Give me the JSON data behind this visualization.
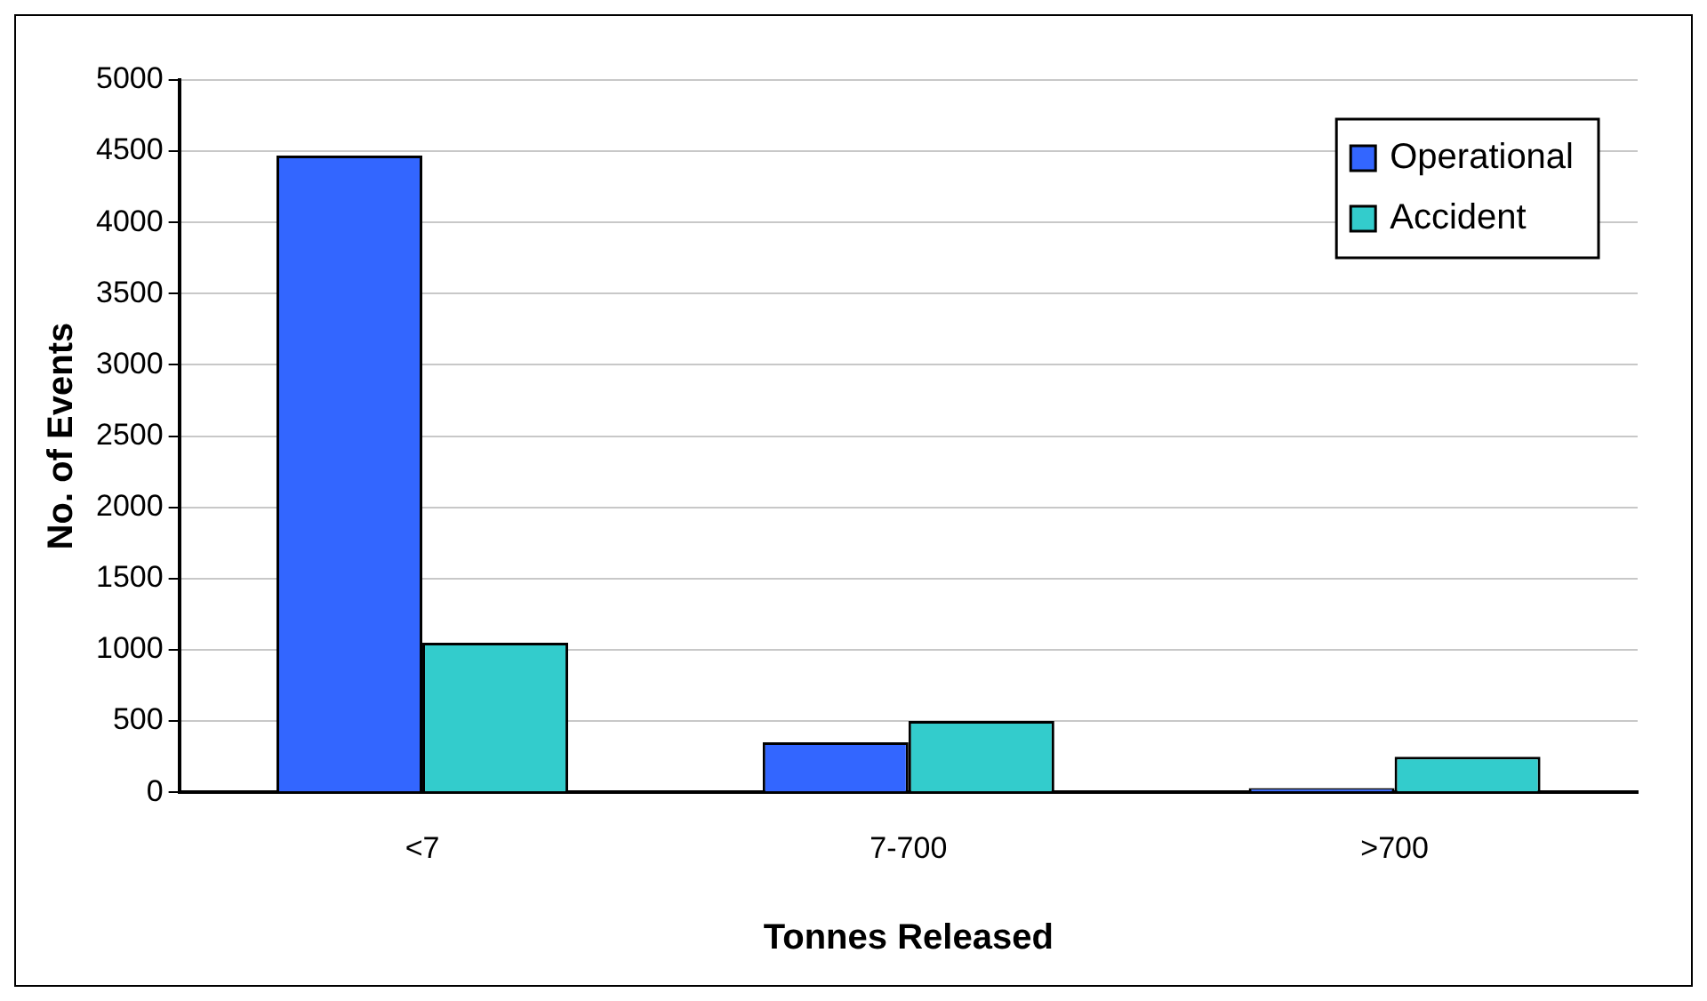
{
  "chart_data": {
    "type": "bar",
    "xlabel": "Tonnes Released",
    "ylabel": "No. of Events",
    "categories": [
      "<7",
      "7-700",
      ">700"
    ],
    "series": [
      {
        "name": "Operational",
        "color": "#3366ff",
        "values": [
          4470,
          350,
          30
        ]
      },
      {
        "name": "Accident",
        "color": "#33cccc",
        "values": [
          1050,
          500,
          250
        ]
      }
    ],
    "ylim": [
      0,
      5000
    ],
    "yticks": [
      0,
      500,
      1000,
      1500,
      2000,
      2500,
      3000,
      3500,
      4000,
      4500,
      5000
    ],
    "grid": "y",
    "legend": "top right"
  }
}
